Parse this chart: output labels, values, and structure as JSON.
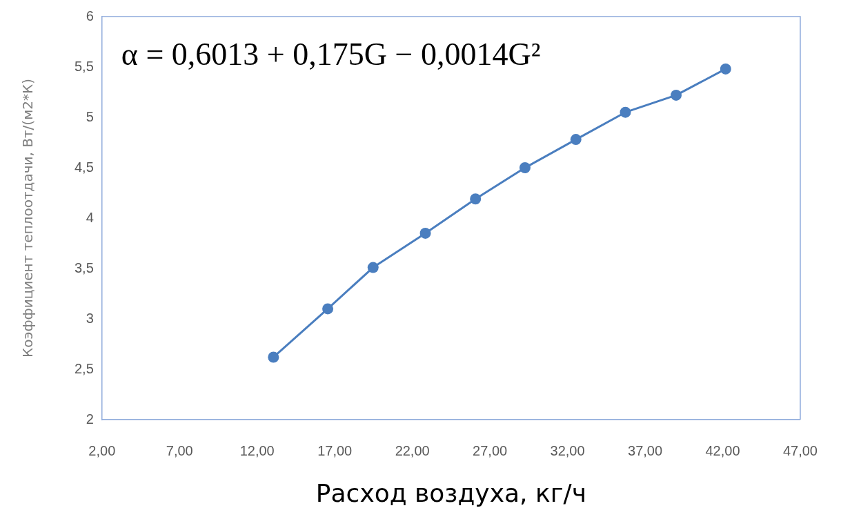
{
  "chart_data": {
    "type": "line",
    "xlabel": "Расход воздуха, кг/ч",
    "ylabel": "Коэффициент теплоотдачи, Вт/(м2*К)",
    "annotations": [
      "α = 0,6013 + 0,175G − 0,0014G²"
    ],
    "x": [
      13.05,
      16.55,
      19.47,
      22.84,
      26.07,
      29.26,
      32.54,
      35.73,
      39.0,
      42.19
    ],
    "values": [
      2.62,
      3.1,
      3.51,
      3.85,
      4.19,
      4.5,
      4.78,
      5.05,
      5.22,
      5.48
    ],
    "color": "#4a7ebf",
    "marker": "circle",
    "xlim": [
      2,
      47
    ],
    "xticks": [
      {
        "value": 2,
        "label": "2,00"
      },
      {
        "value": 7,
        "label": "7,00"
      },
      {
        "value": 12,
        "label": "12,00"
      },
      {
        "value": 17,
        "label": "17,00"
      },
      {
        "value": 22,
        "label": "22,00"
      },
      {
        "value": 27,
        "label": "27,00"
      },
      {
        "value": 32,
        "label": "32,00"
      },
      {
        "value": 37,
        "label": "37,00"
      },
      {
        "value": 42,
        "label": "42,00"
      },
      {
        "value": 47,
        "label": "47,00"
      }
    ],
    "ylim": [
      2,
      6
    ],
    "yticks": [
      2,
      {
        "value": 2.5,
        "label": "2,5"
      },
      3,
      {
        "value": 3.5,
        "label": "3,5"
      },
      4,
      {
        "value": 4.5,
        "label": "4,5"
      },
      5,
      {
        "value": 5.5,
        "label": "5,5"
      },
      6
    ]
  }
}
